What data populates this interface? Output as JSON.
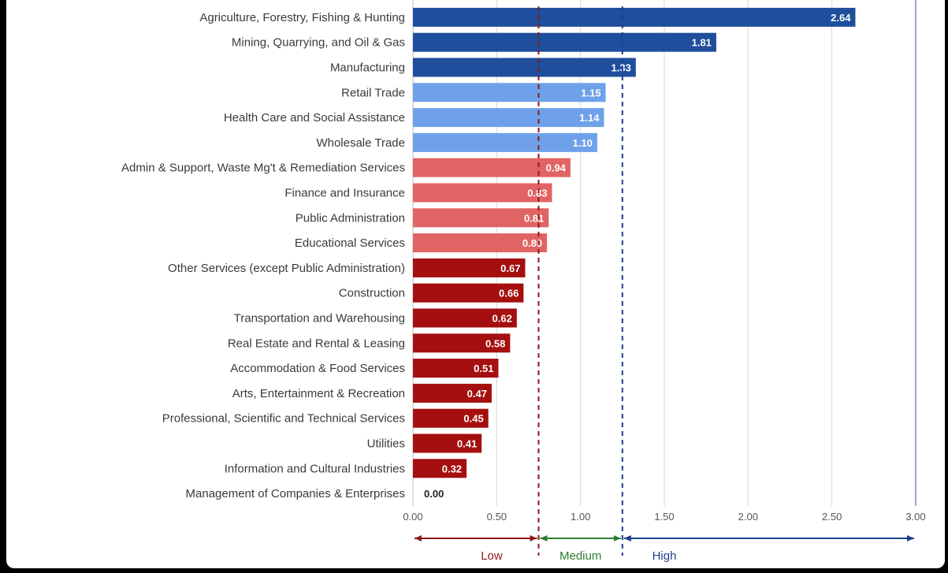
{
  "chart_data": {
    "type": "bar",
    "orientation": "horizontal",
    "title": "",
    "xlabel": "",
    "ylabel": "",
    "xlim": [
      0,
      3
    ],
    "xticks": [
      "0.00",
      "0.50",
      "1.00",
      "1.50",
      "2.00",
      "2.50",
      "3.00"
    ],
    "xtick_values": [
      0,
      0.5,
      1,
      1.5,
      2,
      2.5,
      3
    ],
    "grid": "vertical",
    "categories": [
      "Agriculture, Forestry, Fishing & Hunting",
      "Mining, Quarrying, and Oil & Gas",
      "Manufacturing",
      "Retail Trade",
      "Health Care and Social Assistance",
      "Wholesale Trade",
      "Admin & Support, Waste Mg't & Remediation Services",
      "Finance and Insurance",
      "Public Administration",
      "Educational Services",
      "Other Services (except Public Administration)",
      "Construction",
      "Transportation and Warehousing",
      "Real Estate and Rental & Leasing",
      "Accommodation & Food Services",
      "Arts, Entertainment & Recreation",
      "Professional, Scientific and Technical Services",
      "Utilities",
      "Information and Cultural Industries",
      "Management of Companies & Enterprises"
    ],
    "values": [
      2.64,
      1.81,
      1.33,
      1.15,
      1.14,
      1.1,
      0.94,
      0.83,
      0.81,
      0.8,
      0.67,
      0.66,
      0.62,
      0.58,
      0.51,
      0.47,
      0.45,
      0.41,
      0.32,
      0.0
    ],
    "value_labels": [
      "2.64",
      "1.81",
      "1.33",
      "1.15",
      "1.14",
      "1.10",
      "0.94",
      "0.83",
      "0.81",
      "0.80",
      "0.67",
      "0.66",
      "0.62",
      "0.58",
      "0.51",
      "0.47",
      "0.45",
      "0.41",
      "0.32",
      "0.00"
    ],
    "bar_groups": [
      "dark-blue",
      "dark-blue",
      "dark-blue",
      "light-blue",
      "light-blue",
      "light-blue",
      "light-red",
      "light-red",
      "light-red",
      "light-red",
      "dark-red",
      "dark-red",
      "dark-red",
      "dark-red",
      "dark-red",
      "dark-red",
      "dark-red",
      "dark-red",
      "dark-red",
      "dark-red"
    ],
    "group_colors": {
      "dark-blue": "#1f4e9c",
      "light-blue": "#6fa1ea",
      "light-red": "#e16464",
      "dark-red": "#a50f0f"
    },
    "thresholds": [
      {
        "value": 0.75,
        "color": "#8b1a1a"
      },
      {
        "value": 1.25,
        "color": "#1f3f8f"
      }
    ],
    "zones": [
      {
        "label": "Low",
        "from": 0,
        "to": 0.75,
        "color": "#8b1a1a"
      },
      {
        "label": "Medium",
        "from": 0.75,
        "to": 1.25,
        "color": "#2e7d32"
      },
      {
        "label": "High",
        "from": 1.25,
        "to": 3,
        "color": "#1f3f8f"
      }
    ]
  }
}
